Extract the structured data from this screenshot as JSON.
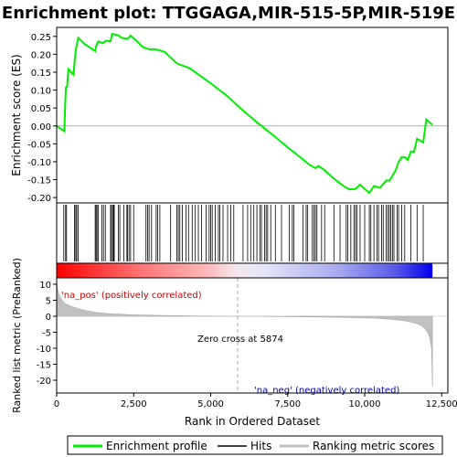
{
  "chart_data": {
    "type": "line",
    "title": "Enrichment plot: TTGGAGA,MIR-515-5P,MIR-519E",
    "top_panel": {
      "ylabel": "Enrichment score (ES)",
      "ylim": [
        -0.215,
        0.275
      ],
      "yticks": [
        -0.2,
        -0.15,
        -0.1,
        -0.05,
        0.0,
        0.05,
        0.1,
        0.15,
        0.2,
        0.25
      ],
      "ytick_labels": [
        "-0.20",
        "-0.15",
        "-0.10",
        "-0.05",
        "0.00",
        "0.05",
        "0.10",
        "0.15",
        "0.20",
        "0.25"
      ],
      "series": [
        {
          "name": "Enrichment profile",
          "color": "#00ee00",
          "points": [
            [
              0,
              0.0
            ],
            [
              250,
              -0.015
            ],
            [
              270,
              0.045
            ],
            [
              300,
              0.108
            ],
            [
              340,
              0.111
            ],
            [
              380,
              0.158
            ],
            [
              550,
              0.143
            ],
            [
              580,
              0.179
            ],
            [
              620,
              0.212
            ],
            [
              700,
              0.246
            ],
            [
              900,
              0.229
            ],
            [
              1250,
              0.209
            ],
            [
              1280,
              0.223
            ],
            [
              1350,
              0.236
            ],
            [
              1500,
              0.231
            ],
            [
              1600,
              0.238
            ],
            [
              1750,
              0.236
            ],
            [
              1800,
              0.257
            ],
            [
              2000,
              0.253
            ],
            [
              2100,
              0.246
            ],
            [
              2300,
              0.243
            ],
            [
              2400,
              0.252
            ],
            [
              2600,
              0.237
            ],
            [
              2800,
              0.22
            ],
            [
              3000,
              0.214
            ],
            [
              3200,
              0.214
            ],
            [
              3500,
              0.207
            ],
            [
              3900,
              0.175
            ],
            [
              4000,
              0.171
            ],
            [
              4300,
              0.162
            ],
            [
              4500,
              0.15
            ],
            [
              5000,
              0.119
            ],
            [
              5500,
              0.086
            ],
            [
              6000,
              0.047
            ],
            [
              6500,
              0.01
            ],
            [
              7000,
              -0.024
            ],
            [
              7500,
              -0.06
            ],
            [
              7800,
              -0.08
            ],
            [
              8200,
              -0.108
            ],
            [
              8400,
              -0.118
            ],
            [
              8500,
              -0.112
            ],
            [
              8700,
              -0.124
            ],
            [
              9000,
              -0.147
            ],
            [
              9300,
              -0.167
            ],
            [
              9500,
              -0.177
            ],
            [
              9700,
              -0.176
            ],
            [
              9850,
              -0.164
            ],
            [
              10000,
              -0.176
            ],
            [
              10150,
              -0.187
            ],
            [
              10300,
              -0.168
            ],
            [
              10500,
              -0.173
            ],
            [
              10700,
              -0.152
            ],
            [
              10800,
              -0.153
            ],
            [
              11000,
              -0.125
            ],
            [
              11100,
              -0.101
            ],
            [
              11200,
              -0.087
            ],
            [
              11300,
              -0.087
            ],
            [
              11400,
              -0.095
            ],
            [
              11500,
              -0.071
            ],
            [
              11600,
              -0.073
            ],
            [
              11700,
              -0.036
            ],
            [
              11900,
              -0.046
            ],
            [
              12000,
              0.018
            ],
            [
              12200,
              0.003
            ]
          ]
        }
      ]
    },
    "hits_panel": {
      "hit_positions": [
        230,
        290,
        320,
        580,
        620,
        650,
        700,
        1250,
        1280,
        1310,
        1350,
        1470,
        1520,
        1580,
        1750,
        1780,
        1820,
        1850,
        1870,
        2000,
        2050,
        2180,
        2280,
        2300,
        2350,
        2400,
        2500,
        2900,
        2950,
        3000,
        3080,
        3230,
        3280,
        3350,
        3700,
        3900,
        3950,
        4000,
        4080,
        4200,
        4280,
        4400,
        4500,
        4600,
        4700,
        4850,
        4950,
        5000,
        5050,
        5150,
        5250,
        5300,
        5400,
        5550,
        5650,
        5750,
        6050,
        6200,
        6300,
        6400,
        6500,
        6600,
        6650,
        6750,
        6800,
        6850,
        6950,
        7100,
        7300,
        7550,
        7650,
        7700,
        8000,
        8100,
        8150,
        8300,
        8350,
        8400,
        8450,
        8600,
        8700,
        9000,
        9200,
        9400,
        9450,
        9550,
        9650,
        9700,
        9750,
        9850,
        10000,
        10150,
        10200,
        10300,
        10400,
        10450,
        10550,
        10600,
        10700,
        10750,
        10800,
        10850,
        10900,
        10950,
        11050,
        11100,
        11200,
        11300,
        11500,
        11700,
        11900
      ]
    },
    "ranked_panel": {
      "ylabel": "Ranked list metric (PreRanked)",
      "ylim": [
        -24,
        12
      ],
      "yticks": [
        -20,
        -15,
        -10,
        -5,
        0,
        5,
        10
      ],
      "ytick_labels": [
        "-20",
        "-15",
        "-10",
        "-5",
        "0",
        "5",
        "10"
      ],
      "points": [
        [
          0,
          10.5
        ],
        [
          50,
          7.5
        ],
        [
          100,
          6.2
        ],
        [
          200,
          4.8
        ],
        [
          300,
          3.9
        ],
        [
          500,
          3.0
        ],
        [
          800,
          2.1
        ],
        [
          1200,
          1.3
        ],
        [
          1700,
          0.8
        ],
        [
          2500,
          0.45
        ],
        [
          3500,
          0.25
        ],
        [
          4500,
          0.12
        ],
        [
          5874,
          0.0
        ],
        [
          7000,
          -0.1
        ],
        [
          8500,
          -0.25
        ],
        [
          9500,
          -0.4
        ],
        [
          10300,
          -0.6
        ],
        [
          10800,
          -0.9
        ],
        [
          11200,
          -1.3
        ],
        [
          11500,
          -1.8
        ],
        [
          11700,
          -2.3
        ],
        [
          11850,
          -3.0
        ],
        [
          11950,
          -3.8
        ],
        [
          12050,
          -5.2
        ],
        [
          12120,
          -7.0
        ],
        [
          12170,
          -10.0
        ],
        [
          12200,
          -22.0
        ]
      ],
      "zero_cross_label": "Zero cross at 5874",
      "zero_cross_x": 5874,
      "pos_label": "'na_pos' (positively correlated)",
      "neg_label": "'na_neg' (negatively correlated)"
    },
    "xlabel": "Rank in Ordered Dataset",
    "xlim": [
      0,
      12700
    ],
    "xticks": [
      0,
      2500,
      5000,
      7500,
      10000,
      12500
    ],
    "xtick_labels": [
      "0",
      "2,500",
      "5,000",
      "7,500",
      "10,000",
      "12,500"
    ],
    "n_genes": 12200,
    "legend": {
      "placement": "bottom",
      "items": [
        "Enrichment profile",
        "Hits",
        "Ranking metric scores"
      ]
    },
    "colors": {
      "es_line": "#00ee00",
      "hits": "#000000",
      "ranked_fill": "#c0c0c0",
      "pos_label": "#cc0000",
      "neg_label": "#0000cc",
      "zero_line": "#aaaaaa"
    }
  }
}
